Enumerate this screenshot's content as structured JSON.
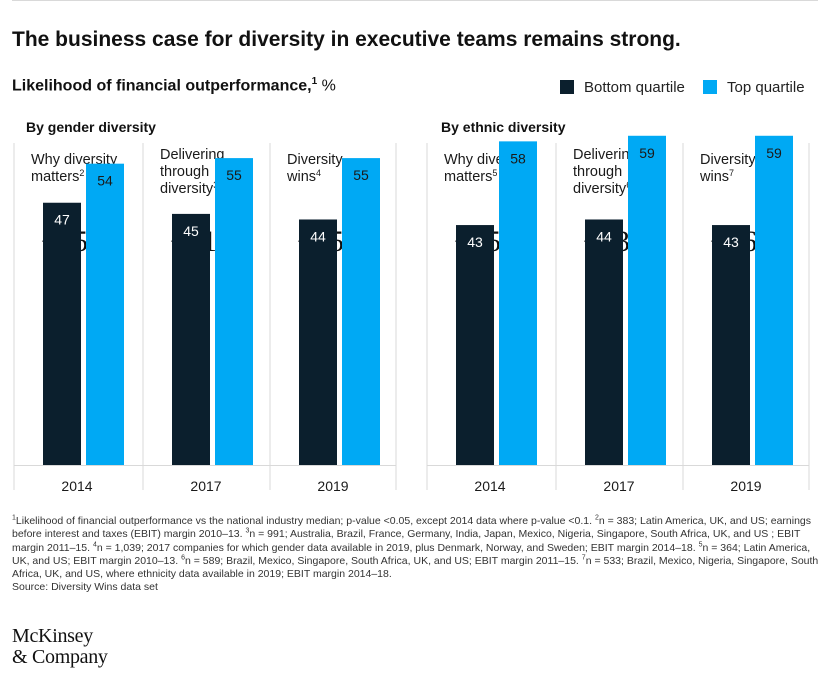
{
  "header": {
    "title": "The business case for diversity in executive teams remains strong.",
    "subtitle_text": "Likelihood of financial outperformance,",
    "subtitle_sup": "1",
    "subtitle_unit": " %"
  },
  "colors": {
    "bottom": "#0b1f2d",
    "top": "#00a9f4",
    "text_on_bottom": "#ffffff",
    "text_on_top": "#1a1a1a",
    "separator": "#d9d9d9"
  },
  "chart_data": {
    "type": "bar",
    "title": "Likelihood of financial outperformance, %",
    "legend": [
      "Bottom quartile",
      "Top quartile"
    ],
    "legend_position": "top-right",
    "ylim": [
      0,
      100
    ],
    "grid": false,
    "groups": [
      {
        "label": "By gender diversity",
        "studies": [
          {
            "name": "Why diversity matters",
            "name_lines": [
              "Why diversity",
              "matters"
            ],
            "sup": "2",
            "uplift": "+15%",
            "year": "2014",
            "bottom": 47,
            "top": 54
          },
          {
            "name": "Delivering through diversity",
            "name_lines": [
              "Delivering",
              "through",
              "diversity"
            ],
            "sup": "3",
            "uplift": "+21%",
            "year": "2017",
            "bottom": 45,
            "top": 55
          },
          {
            "name": "Diversity wins",
            "name_lines": [
              "Diversity",
              "wins"
            ],
            "sup": "4",
            "uplift": "+25%",
            "year": "2019",
            "bottom": 44,
            "top": 55
          }
        ]
      },
      {
        "label": "By ethnic diversity",
        "studies": [
          {
            "name": "Why diversity matters",
            "name_lines": [
              "Why diversity",
              "matters"
            ],
            "sup": "5",
            "uplift": "+35%",
            "year": "2014",
            "bottom": 43,
            "top": 58
          },
          {
            "name": "Delivering through diversity",
            "name_lines": [
              "Delivering",
              "through",
              "diversity"
            ],
            "sup": "6",
            "uplift": "+33%",
            "year": "2017",
            "bottom": 44,
            "top": 59
          },
          {
            "name": "Diversity wins",
            "name_lines": [
              "Diversity",
              "wins"
            ],
            "sup": "7",
            "uplift": "+36%",
            "year": "2019",
            "bottom": 43,
            "top": 59
          }
        ]
      }
    ]
  },
  "footnotes": {
    "lines": [
      {
        "parts": [
          {
            "sup": "1"
          },
          {
            "t": "Likelihood of financial outperformance vs the national industry median; p-value <0.05, except 2014 data where p-value <0.1. "
          },
          {
            "sup": "2"
          },
          {
            "t": "n = 383; Latin America, UK, and US; earnings before interest and taxes (EBIT) margin 2010–13. "
          },
          {
            "sup": "3"
          },
          {
            "t": "n = 991; Australia, Brazil, France, Germany, India, Japan, Mexico, Nigeria, Singapore, South Africa, UK, and US ; EBIT margin 2011–15. "
          },
          {
            "sup": "4"
          },
          {
            "t": "n = 1,039; 2017 companies for which gender data available in 2019, plus Denmark, Norway, and Sweden;  EBIT margin 2014–18. "
          },
          {
            "sup": "5"
          },
          {
            "t": "n = 364; Latin America, UK, and US; EBIT margin 2010–13. "
          },
          {
            "sup": "6"
          },
          {
            "t": "n = 589; Brazil, Mexico, Singapore, South Africa, UK, and US; EBIT margin 2011–15. "
          },
          {
            "sup": "7"
          },
          {
            "t": "n = 533; Brazil, Mexico, Nigeria, Singapore, South Africa, UK, and US, where ethnicity data available in 2019; EBIT margin 2014–18."
          }
        ]
      }
    ],
    "source": "Source: Diversity Wins data set"
  },
  "logo": {
    "line1": "McKinsey",
    "line2": "& Company"
  }
}
